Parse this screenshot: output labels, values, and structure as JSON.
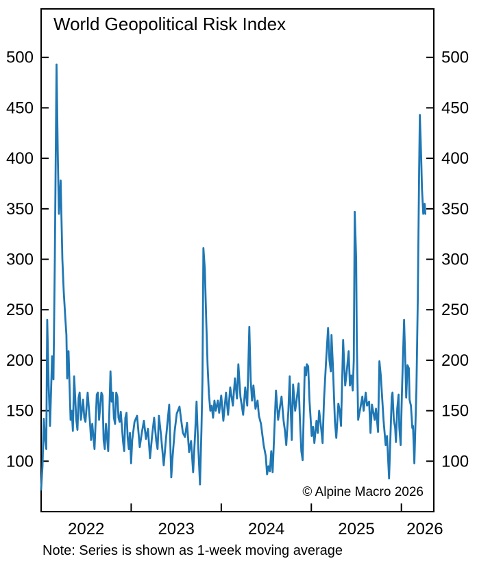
{
  "header": {
    "title": "World Geopolitical Risk Index"
  },
  "annotations": {
    "copyright": "© Alpine Macro 2026",
    "note": "Note: Series is shown as 1-week moving average"
  },
  "chart_data": {
    "type": "line",
    "title": "World Geopolitical Risk Index",
    "series_name": "World Geopolitical Risk Index (1-week moving average)",
    "line_color": "#1f77b4",
    "axis_color": "#000000",
    "grid": false,
    "legend": "none",
    "xlabel": "",
    "ylabel": "",
    "xlim": [
      2022.0,
      2026.36
    ],
    "ylim": [
      50,
      548
    ],
    "yticks": [
      100,
      150,
      200,
      250,
      300,
      350,
      400,
      450,
      500
    ],
    "ytick_sides": [
      "left",
      "right"
    ],
    "xtick_boundaries": [
      2023,
      2024,
      2025,
      2026
    ],
    "xtick_labels": [
      {
        "label": "2022",
        "x": 2022.5
      },
      {
        "label": "2023",
        "x": 2023.5
      },
      {
        "label": "2024",
        "x": 2024.5
      },
      {
        "label": "2025",
        "x": 2025.5
      },
      {
        "label": "2026",
        "x": 2026.26
      }
    ],
    "points": [
      [
        2022.0,
        72
      ],
      [
        2022.015,
        95
      ],
      [
        2022.03,
        142
      ],
      [
        2022.046,
        120
      ],
      [
        2022.057,
        112
      ],
      [
        2022.068,
        240
      ],
      [
        2022.084,
        175
      ],
      [
        2022.099,
        135
      ],
      [
        2022.122,
        204
      ],
      [
        2022.137,
        181
      ],
      [
        2022.152,
        300
      ],
      [
        2022.171,
        493
      ],
      [
        2022.186,
        400
      ],
      [
        2022.198,
        345
      ],
      [
        2022.217,
        378
      ],
      [
        2022.236,
        300
      ],
      [
        2022.251,
        268
      ],
      [
        2022.266,
        245
      ],
      [
        2022.281,
        225
      ],
      [
        2022.289,
        182
      ],
      [
        2022.304,
        209
      ],
      [
        2022.327,
        141
      ],
      [
        2022.34,
        150
      ],
      [
        2022.352,
        130
      ],
      [
        2022.367,
        184
      ],
      [
        2022.39,
        141
      ],
      [
        2022.403,
        131
      ],
      [
        2022.416,
        163
      ],
      [
        2022.428,
        168
      ],
      [
        2022.441,
        141
      ],
      [
        2022.466,
        161
      ],
      [
        2022.479,
        143
      ],
      [
        2022.492,
        139
      ],
      [
        2022.517,
        168
      ],
      [
        2022.542,
        139
      ],
      [
        2022.555,
        121
      ],
      [
        2022.568,
        137
      ],
      [
        2022.593,
        112
      ],
      [
        2022.618,
        166
      ],
      [
        2022.631,
        168
      ],
      [
        2022.644,
        141
      ],
      [
        2022.669,
        168
      ],
      [
        2022.682,
        165
      ],
      [
        2022.694,
        121
      ],
      [
        2022.707,
        112
      ],
      [
        2022.72,
        137
      ],
      [
        2022.745,
        110
      ],
      [
        2022.77,
        189
      ],
      [
        2022.783,
        159
      ],
      [
        2022.796,
        168
      ],
      [
        2022.808,
        143
      ],
      [
        2022.821,
        137
      ],
      [
        2022.834,
        168
      ],
      [
        2022.847,
        164
      ],
      [
        2022.859,
        143
      ],
      [
        2022.872,
        139
      ],
      [
        2022.884,
        149
      ],
      [
        2022.91,
        119
      ],
      [
        2022.922,
        110
      ],
      [
        2022.935,
        143
      ],
      [
        2022.948,
        148
      ],
      [
        2022.961,
        123
      ],
      [
        2022.974,
        112
      ],
      [
        2022.986,
        128
      ],
      [
        2022.999,
        98
      ],
      [
        2023.011,
        121
      ],
      [
        2023.037,
        139
      ],
      [
        2023.065,
        145
      ],
      [
        2023.095,
        114
      ],
      [
        2023.118,
        128
      ],
      [
        2023.141,
        140
      ],
      [
        2023.164,
        122
      ],
      [
        2023.186,
        132
      ],
      [
        2023.209,
        103
      ],
      [
        2023.232,
        125
      ],
      [
        2023.255,
        143
      ],
      [
        2023.278,
        120
      ],
      [
        2023.293,
        112
      ],
      [
        2023.308,
        145
      ],
      [
        2023.331,
        126
      ],
      [
        2023.361,
        96
      ],
      [
        2023.384,
        120
      ],
      [
        2023.399,
        135
      ],
      [
        2023.422,
        156
      ],
      [
        2023.445,
        84
      ],
      [
        2023.46,
        105
      ],
      [
        2023.483,
        130
      ],
      [
        2023.506,
        147
      ],
      [
        2023.536,
        154
      ],
      [
        2023.559,
        138
      ],
      [
        2023.574,
        128
      ],
      [
        2023.597,
        124
      ],
      [
        2023.62,
        138
      ],
      [
        2023.643,
        109
      ],
      [
        2023.665,
        120
      ],
      [
        2023.688,
        89
      ],
      [
        2023.711,
        130
      ],
      [
        2023.726,
        159
      ],
      [
        2023.742,
        120
      ],
      [
        2023.764,
        77
      ],
      [
        2023.78,
        130
      ],
      [
        2023.791,
        180
      ],
      [
        2023.802,
        311
      ],
      [
        2023.818,
        290
      ],
      [
        2023.833,
        240
      ],
      [
        2023.848,
        195
      ],
      [
        2023.863,
        167
      ],
      [
        2023.879,
        150
      ],
      [
        2023.894,
        155
      ],
      [
        2023.909,
        143
      ],
      [
        2023.924,
        160
      ],
      [
        2023.939,
        150
      ],
      [
        2023.962,
        160
      ],
      [
        2023.977,
        148
      ],
      [
        2024.0,
        165
      ],
      [
        2024.023,
        140
      ],
      [
        2024.053,
        168
      ],
      [
        2024.076,
        146
      ],
      [
        2024.099,
        173
      ],
      [
        2024.129,
        155
      ],
      [
        2024.152,
        182
      ],
      [
        2024.175,
        162
      ],
      [
        2024.19,
        196
      ],
      [
        2024.213,
        164
      ],
      [
        2024.243,
        146
      ],
      [
        2024.266,
        173
      ],
      [
        2024.289,
        155
      ],
      [
        2024.312,
        233
      ],
      [
        2024.327,
        180
      ],
      [
        2024.342,
        160
      ],
      [
        2024.357,
        175
      ],
      [
        2024.38,
        152
      ],
      [
        2024.403,
        160
      ],
      [
        2024.418,
        145
      ],
      [
        2024.441,
        137
      ],
      [
        2024.471,
        116
      ],
      [
        2024.494,
        105
      ],
      [
        2024.509,
        87
      ],
      [
        2024.524,
        95
      ],
      [
        2024.54,
        90
      ],
      [
        2024.555,
        110
      ],
      [
        2024.57,
        89
      ],
      [
        2024.585,
        120
      ],
      [
        2024.608,
        170
      ],
      [
        2024.631,
        141
      ],
      [
        2024.654,
        155
      ],
      [
        2024.669,
        164
      ],
      [
        2024.692,
        140
      ],
      [
        2024.707,
        130
      ],
      [
        2024.722,
        116
      ],
      [
        2024.745,
        150
      ],
      [
        2024.76,
        184
      ],
      [
        2024.783,
        121
      ],
      [
        2024.798,
        176
      ],
      [
        2024.821,
        150
      ],
      [
        2024.836,
        160
      ],
      [
        2024.859,
        177
      ],
      [
        2024.874,
        140
      ],
      [
        2024.889,
        110
      ],
      [
        2024.904,
        101
      ],
      [
        2024.927,
        193
      ],
      [
        2024.942,
        185
      ],
      [
        2024.95,
        196
      ],
      [
        2024.965,
        194
      ],
      [
        2024.98,
        160
      ],
      [
        2025.004,
        125
      ],
      [
        2025.019,
        134
      ],
      [
        2025.034,
        118
      ],
      [
        2025.057,
        140
      ],
      [
        2025.072,
        128
      ],
      [
        2025.087,
        150
      ],
      [
        2025.11,
        132
      ],
      [
        2025.125,
        118
      ],
      [
        2025.14,
        160
      ],
      [
        2025.163,
        198
      ],
      [
        2025.186,
        232
      ],
      [
        2025.201,
        200
      ],
      [
        2025.216,
        189
      ],
      [
        2025.224,
        225
      ],
      [
        2025.239,
        195
      ],
      [
        2025.262,
        139
      ],
      [
        2025.277,
        123
      ],
      [
        2025.3,
        157
      ],
      [
        2025.315,
        150
      ],
      [
        2025.33,
        135
      ],
      [
        2025.353,
        220
      ],
      [
        2025.368,
        190
      ],
      [
        2025.376,
        175
      ],
      [
        2025.391,
        187
      ],
      [
        2025.414,
        209
      ],
      [
        2025.429,
        175
      ],
      [
        2025.444,
        185
      ],
      [
        2025.46,
        170
      ],
      [
        2025.471,
        200
      ],
      [
        2025.482,
        347
      ],
      [
        2025.498,
        300
      ],
      [
        2025.505,
        220
      ],
      [
        2025.52,
        141
      ],
      [
        2025.543,
        152
      ],
      [
        2025.566,
        164
      ],
      [
        2025.581,
        150
      ],
      [
        2025.604,
        168
      ],
      [
        2025.619,
        155
      ],
      [
        2025.642,
        159
      ],
      [
        2025.657,
        128
      ],
      [
        2025.673,
        156
      ],
      [
        2025.703,
        141
      ],
      [
        2025.718,
        152
      ],
      [
        2025.741,
        129
      ],
      [
        2025.756,
        199
      ],
      [
        2025.771,
        185
      ],
      [
        2025.787,
        162
      ],
      [
        2025.802,
        140
      ],
      [
        2025.825,
        116
      ],
      [
        2025.84,
        125
      ],
      [
        2025.863,
        83
      ],
      [
        2025.893,
        164
      ],
      [
        2025.901,
        168
      ],
      [
        2025.916,
        141
      ],
      [
        2025.931,
        133
      ],
      [
        2025.939,
        119
      ],
      [
        2025.954,
        152
      ],
      [
        2025.969,
        166
      ],
      [
        2025.977,
        133
      ],
      [
        2025.992,
        116
      ],
      [
        2026.007,
        171
      ],
      [
        2026.03,
        240
      ],
      [
        2026.045,
        194
      ],
      [
        2026.053,
        163
      ],
      [
        2026.068,
        195
      ],
      [
        2026.083,
        192
      ],
      [
        2026.091,
        161
      ],
      [
        2026.106,
        155
      ],
      [
        2026.121,
        133
      ],
      [
        2026.129,
        135
      ],
      [
        2026.144,
        98
      ],
      [
        2026.167,
        171
      ],
      [
        2026.182,
        260
      ],
      [
        2026.197,
        390
      ],
      [
        2026.205,
        443
      ],
      [
        2026.22,
        400
      ],
      [
        2026.228,
        370
      ],
      [
        2026.243,
        345
      ],
      [
        2026.258,
        355
      ],
      [
        2026.266,
        345
      ]
    ]
  }
}
